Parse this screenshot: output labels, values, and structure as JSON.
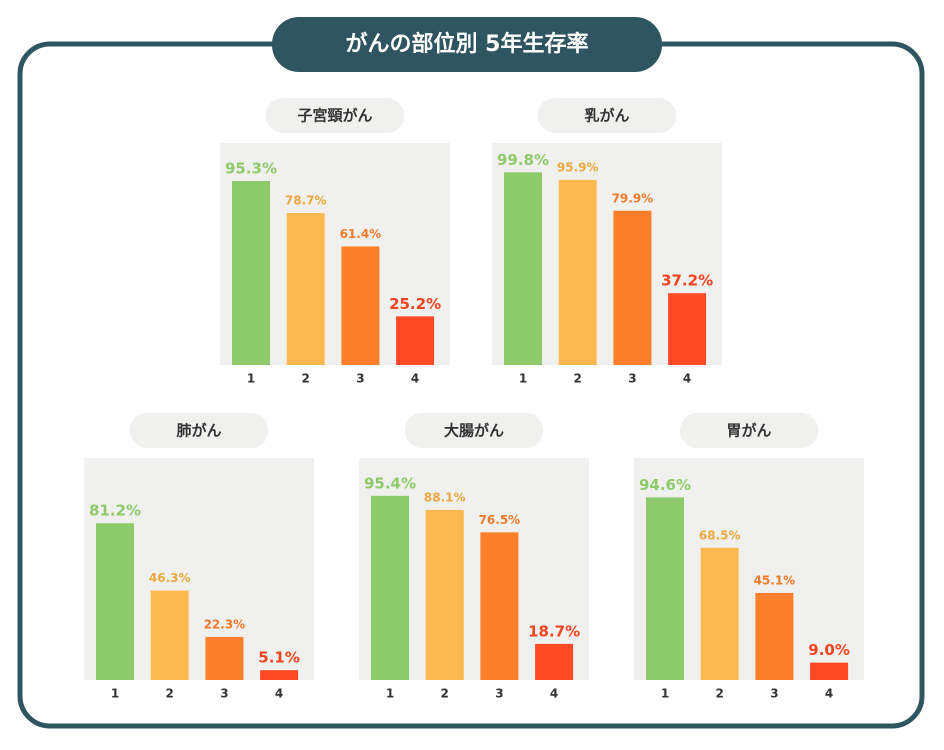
{
  "header": {
    "title": "がんの部位別 5年生存率"
  },
  "chart_data": [
    {
      "type": "bar",
      "title": "子宮頸がん",
      "categories": [
        "1",
        "2",
        "3",
        "4"
      ],
      "values": [
        95.3,
        78.7,
        61.4,
        25.2
      ],
      "value_labels": [
        "95.3%",
        "78.7%",
        "61.4%",
        "25.2%"
      ],
      "colors": [
        "#8fca6a",
        "#fdb94f",
        "#fd7f2c",
        "#fd4a24"
      ],
      "ylim": [
        0,
        115
      ]
    },
    {
      "type": "bar",
      "title": "乳がん",
      "categories": [
        "1",
        "2",
        "3",
        "4"
      ],
      "values": [
        99.8,
        95.9,
        79.9,
        37.2
      ],
      "value_labels": [
        "99.8%",
        "95.9%",
        "79.9%",
        "37.2%"
      ],
      "colors": [
        "#8fca6a",
        "#fdb94f",
        "#fd7f2c",
        "#fd4a24"
      ],
      "ylim": [
        0,
        115
      ]
    },
    {
      "type": "bar",
      "title": "肺がん",
      "categories": [
        "1",
        "2",
        "3",
        "4"
      ],
      "values": [
        81.2,
        46.3,
        22.3,
        5.1
      ],
      "value_labels": [
        "81.2%",
        "46.3%",
        "22.3%",
        "5.1%"
      ],
      "colors": [
        "#8fca6a",
        "#fdb94f",
        "#fd7f2c",
        "#fd4a24"
      ],
      "ylim": [
        0,
        115
      ]
    },
    {
      "type": "bar",
      "title": "大腸がん",
      "categories": [
        "1",
        "2",
        "3",
        "4"
      ],
      "values": [
        95.4,
        88.1,
        76.5,
        18.7
      ],
      "value_labels": [
        "95.4%",
        "88.1%",
        "76.5%",
        "18.7%"
      ],
      "colors": [
        "#8fca6a",
        "#fdb94f",
        "#fd7f2c",
        "#fd4a24"
      ],
      "ylim": [
        0,
        115
      ]
    },
    {
      "type": "bar",
      "title": "胃がん",
      "categories": [
        "1",
        "2",
        "3",
        "4"
      ],
      "values": [
        94.6,
        68.5,
        45.1,
        9.0
      ],
      "value_labels": [
        "94.6%",
        "68.5%",
        "45.1%",
        "9.0%"
      ],
      "colors": [
        "#8fca6a",
        "#fdb94f",
        "#fd7f2c",
        "#fd4a24"
      ],
      "ylim": [
        0,
        115
      ]
    }
  ]
}
